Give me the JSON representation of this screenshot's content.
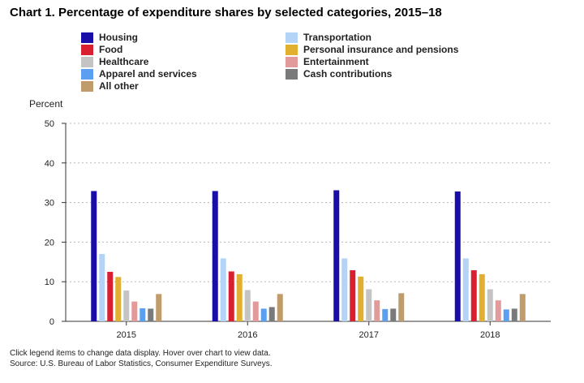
{
  "title": "Chart 1. Percentage of expenditure shares by selected categories, 2015–18",
  "note": "Click legend items to change data display. Hover over chart to view data.",
  "source": "Source: U.S. Bureau of Labor Statistics, Consumer Expenditure Surveys.",
  "chart_data": {
    "type": "bar",
    "title": "Chart 1. Percentage of expenditure shares by selected categories, 2015–18",
    "xlabel": "",
    "ylabel": "Percent",
    "ylim": [
      0,
      50
    ],
    "yticks": [
      "0",
      "10",
      "20",
      "30",
      "40",
      "50"
    ],
    "grid": true,
    "legend_position": "top",
    "categories": [
      "2015",
      "2016",
      "2017",
      "2018"
    ],
    "series": [
      {
        "name": "Housing",
        "color": "#1a0ea8",
        "values": [
          32.9,
          32.9,
          33.1,
          32.8
        ]
      },
      {
        "name": "Transportation",
        "color": "#b3d4f6",
        "values": [
          17.0,
          15.9,
          15.9,
          15.9
        ]
      },
      {
        "name": "Food",
        "color": "#d92030",
        "values": [
          12.5,
          12.6,
          12.9,
          12.9
        ]
      },
      {
        "name": "Personal insurance and pensions",
        "color": "#e1b030",
        "values": [
          11.2,
          11.9,
          11.3,
          11.9
        ]
      },
      {
        "name": "Healthcare",
        "color": "#c4c4c4",
        "values": [
          7.8,
          7.9,
          8.1,
          8.1
        ]
      },
      {
        "name": "Entertainment",
        "color": "#e39a9b",
        "values": [
          5.0,
          5.0,
          5.3,
          5.3
        ]
      },
      {
        "name": "Apparel and services",
        "color": "#5b9ff0",
        "values": [
          3.3,
          3.2,
          3.1,
          3.0
        ]
      },
      {
        "name": "Cash contributions",
        "color": "#7a7a7a",
        "values": [
          3.2,
          3.6,
          3.2,
          3.2
        ]
      },
      {
        "name": "All other",
        "color": "#c09c6c",
        "values": [
          6.9,
          6.9,
          7.1,
          6.9
        ]
      }
    ]
  }
}
